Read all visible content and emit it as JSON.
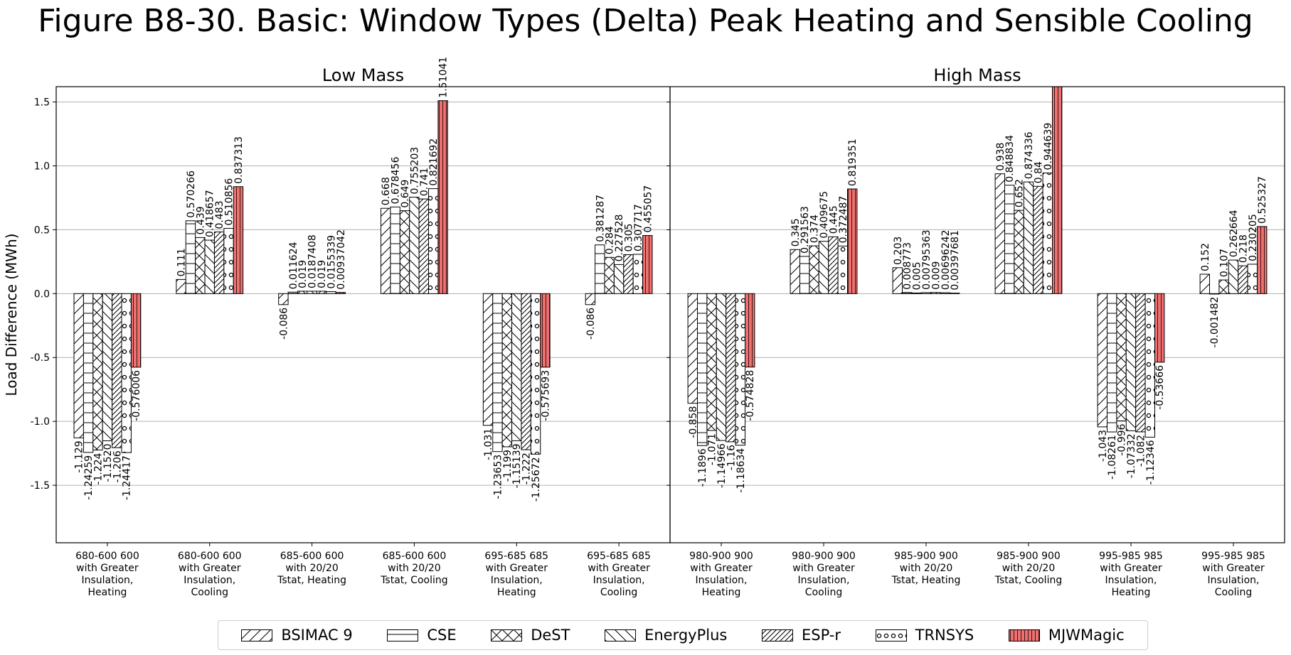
{
  "title": "Figure B8-30. Basic: Window Types (Delta) Peak Heating and Sensible Cooling",
  "chart_data": {
    "type": "bar",
    "ylabel": "Load Difference (MWh)",
    "ylim": [
      -1.95,
      1.62
    ],
    "yticks": [
      -1.5,
      -1.0,
      -0.5,
      0.0,
      0.5,
      1.0,
      1.5
    ],
    "grid": true,
    "legend_position": "bottom",
    "series": [
      {
        "name": "BSIMAC 9",
        "pattern": "forward-diagonal",
        "color": "#ffffff"
      },
      {
        "name": "CSE",
        "pattern": "horizontal",
        "color": "#ffffff"
      },
      {
        "name": "DeST",
        "pattern": "cross-diagonal",
        "color": "#ffffff"
      },
      {
        "name": "EnergyPlus",
        "pattern": "back-diagonal",
        "color": "#ffffff"
      },
      {
        "name": "ESP-r",
        "pattern": "dense-diagonal",
        "color": "#ffffff"
      },
      {
        "name": "TRNSYS",
        "pattern": "circles",
        "color": "#ffffff"
      },
      {
        "name": "MJWMagic",
        "pattern": "vertical",
        "color": "#f07070"
      }
    ],
    "panels": [
      {
        "title": "Low Mass",
        "groups": [
          {
            "label": [
              "680-600 600",
              "with Greater",
              "Insulation,",
              "Heating"
            ],
            "values": [
              -1.129,
              -1.24259,
              -1.224,
              -1.152,
              -1.206,
              -1.24417,
              -0.576006
            ],
            "labels": [
              "-1.129",
              "-1.24259",
              "-1.224",
              "-1.1520",
              "-1.206",
              "-1.24417",
              "-0.576006"
            ]
          },
          {
            "label": [
              "680-600 600",
              "with Greater",
              "Insulation,",
              "Cooling"
            ],
            "values": [
              0.111,
              0.570266,
              0.439,
              0.418657,
              0.483,
              0.510856,
              0.837313
            ],
            "labels": [
              "0.111",
              "0.570266",
              "0.439",
              "0.418657",
              "0.483",
              "0.510856",
              "0.837313"
            ]
          },
          {
            "label": [
              "685-600 600",
              "with 20/20",
              "Tstat, Heating"
            ],
            "values": [
              -0.086,
              0.011624,
              0.019,
              0.0187408,
              0.019,
              0.0155339,
              0.00937042
            ],
            "labels": [
              "-0.086",
              "0.011624",
              "0.019",
              "0.0187408",
              "0.019",
              "0.0155339",
              "0.00937042"
            ]
          },
          {
            "label": [
              "685-600 600",
              "with 20/20",
              "Tstat, Cooling"
            ],
            "values": [
              0.668,
              0.678456,
              0.649,
              0.755203,
              0.741,
              0.821692,
              1.51041
            ],
            "labels": [
              "0.668",
              "0.678456",
              "0.649",
              "0.755203",
              "0.741",
              "0.821692",
              "1.51041"
            ]
          },
          {
            "label": [
              "695-685 685",
              "with Greater",
              "Insulation,",
              "Heating"
            ],
            "values": [
              -1.031,
              -1.23653,
              -1.199,
              -1.15139,
              -1.222,
              -1.25672,
              -0.575693
            ],
            "labels": [
              "-1.031",
              "-1.23653",
              "-1.199",
              "-1.15139",
              "-1.222",
              "-1.25672",
              "-0.575693"
            ]
          },
          {
            "label": [
              "695-685 685",
              "with Greater",
              "Insulation,",
              "Cooling"
            ],
            "values": [
              -0.086,
              0.381287,
              0.284,
              0.227528,
              0.305,
              0.307717,
              0.455057
            ],
            "labels": [
              "-0.086",
              "0.381287",
              "0.284",
              "0.227528",
              "0.305",
              "0.307717",
              "0.455057"
            ]
          }
        ]
      },
      {
        "title": "High Mass",
        "groups": [
          {
            "label": [
              "980-900 900",
              "with Greater",
              "Insulation,",
              "Heating"
            ],
            "values": [
              -0.858,
              -1.1896,
              -1.071,
              -1.14966,
              -1.16,
              -1.18634,
              -0.574828
            ],
            "labels": [
              "-0.858",
              "-1.1896",
              "-1.071",
              "-1.14966",
              "-1.16",
              "-1.18634",
              "-0.574828"
            ]
          },
          {
            "label": [
              "980-900 900",
              "with Greater",
              "Insulation,",
              "Cooling"
            ],
            "values": [
              0.345,
              0.291563,
              0.374,
              0.409675,
              0.445,
              0.372487,
              0.819351
            ],
            "labels": [
              "0.345",
              "0.291563",
              "0.374",
              "0.409675",
              "0.445",
              "0.372487",
              "0.819351"
            ]
          },
          {
            "label": [
              "985-900 900",
              "with 20/20",
              "Tstat, Heating"
            ],
            "values": [
              0.203,
              0.008773,
              0.005,
              0.00795363,
              0.009,
              0.00696242,
              0.00397681
            ],
            "labels": [
              "0.203",
              "0.008773",
              "0.005",
              "0.00795363",
              "0.009",
              "0.00696242",
              "0.00397681"
            ]
          },
          {
            "label": [
              "985-900 900",
              "with 20/20",
              "Tstat, Cooling"
            ],
            "values": [
              0.938,
              0.848834,
              0.652,
              0.874336,
              0.84,
              0.944639,
              1.67
            ],
            "labels": [
              "0.938",
              "0.848834",
              "0.652",
              "0.874336",
              "0.84",
              "0.944639",
              ""
            ]
          },
          {
            "label": [
              "995-985 985",
              "with Greater",
              "Insulation,",
              "Heating"
            ],
            "values": [
              -1.043,
              -1.08261,
              -0.996,
              -1.07332,
              -1.082,
              -1.12346,
              -0.53666
            ],
            "labels": [
              "-1.043",
              "-1.08261",
              "-0.996",
              "-1.07332",
              "-1.082",
              "-1.12346",
              "-0.53666"
            ]
          },
          {
            "label": [
              "995-985 985",
              "with Greater",
              "Insulation,",
              "Cooling"
            ],
            "values": [
              0.152,
              -0.001482,
              0.107,
              0.262664,
              0.218,
              0.230205,
              0.525327
            ],
            "labels": [
              "0.152",
              "-0.001482",
              "0.107",
              "0.262664",
              "0.218",
              "0.230205",
              "0.525327"
            ]
          }
        ]
      }
    ]
  }
}
